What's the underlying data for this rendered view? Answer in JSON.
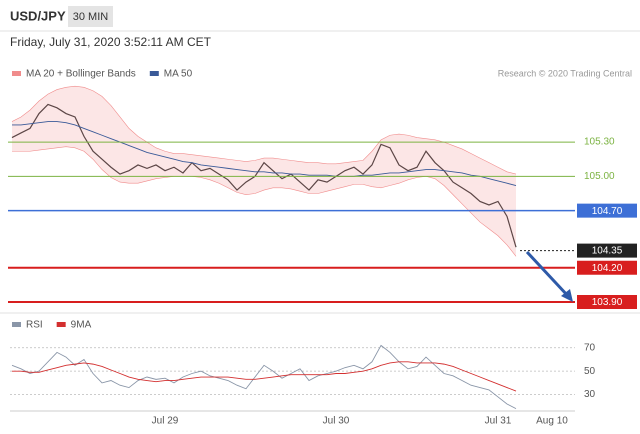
{
  "header": {
    "symbol": "USD/JPY",
    "interval": "30 MIN",
    "timestamp": "Friday, July 31, 2020 3:52:11 AM CET",
    "credit": "Research © 2020 Trading Central"
  },
  "chart_data": [
    {
      "type": "line",
      "ylim": [
        103.83,
        105.8
      ],
      "series": [
        {
          "color": "#333333",
          "values": [
            105.34,
            105.38,
            105.42,
            105.55,
            105.63,
            105.6,
            105.55,
            105.52,
            105.35,
            105.22,
            105.15,
            105.08,
            105.02,
            105.05,
            105.1,
            105.07,
            105.1,
            105.05,
            105.08,
            105.03,
            105.12,
            105.05,
            105.07,
            105.02,
            104.97,
            104.88,
            104.95,
            105.0,
            105.12,
            105.05,
            104.98,
            105.02,
            104.95,
            104.88,
            104.97,
            104.95,
            105.0,
            105.05,
            105.08,
            105.02,
            105.1,
            105.28,
            105.25,
            105.1,
            105.05,
            105.08,
            105.22,
            105.12,
            105.05,
            104.95,
            104.9,
            104.85,
            104.78,
            104.75,
            104.78,
            104.65,
            104.38,
            null,
            null,
            null,
            null,
            null
          ]
        },
        {
          "name": "MA 20 + Bollinger Bands",
          "color": "#f08c8c",
          "upper": [
            105.48,
            105.52,
            105.58,
            105.66,
            105.72,
            105.76,
            105.78,
            105.79,
            105.78,
            105.75,
            105.7,
            105.62,
            105.52,
            105.42,
            105.35,
            105.3,
            105.25,
            105.22,
            105.2,
            105.2,
            105.19,
            105.18,
            105.17,
            105.16,
            105.15,
            105.14,
            105.13,
            105.14,
            105.16,
            105.16,
            105.15,
            105.14,
            105.13,
            105.12,
            105.12,
            105.11,
            105.11,
            105.12,
            105.13,
            105.14,
            105.22,
            105.32,
            105.36,
            105.37,
            105.36,
            105.34,
            105.33,
            105.32,
            105.3,
            105.27,
            105.24,
            105.2,
            105.16,
            105.12,
            105.08,
            105.04,
            105.02,
            null,
            null,
            null,
            null,
            null
          ],
          "lower": [
            105.22,
            105.22,
            105.22,
            105.23,
            105.24,
            105.25,
            105.26,
            105.25,
            105.22,
            105.15,
            105.06,
            104.99,
            104.95,
            104.94,
            104.94,
            104.96,
            104.98,
            104.99,
            105.0,
            105.0,
            105.0,
            104.99,
            104.97,
            104.94,
            104.9,
            104.86,
            104.84,
            104.85,
            104.88,
            104.9,
            104.9,
            104.89,
            104.87,
            104.85,
            104.85,
            104.87,
            104.89,
            104.91,
            104.93,
            104.93,
            104.91,
            104.9,
            104.92,
            104.94,
            104.97,
            104.99,
            105.0,
            104.98,
            104.92,
            104.84,
            104.76,
            104.68,
            104.6,
            104.54,
            104.48,
            104.4,
            104.3,
            null,
            null,
            null,
            null,
            null
          ]
        },
        {
          "name": "MA 50",
          "color": "#3a5a98",
          "values": [
            105.45,
            105.45,
            105.46,
            105.47,
            105.48,
            105.48,
            105.47,
            105.45,
            105.42,
            105.39,
            105.36,
            105.33,
            105.3,
            105.27,
            105.24,
            105.21,
            105.19,
            105.17,
            105.15,
            105.13,
            105.12,
            105.1,
            105.09,
            105.08,
            105.07,
            105.06,
            105.05,
            105.04,
            105.04,
            105.03,
            105.03,
            105.02,
            105.02,
            105.01,
            105.01,
            105.01,
            105.0,
            105.0,
            105.0,
            105.01,
            105.01,
            105.02,
            105.03,
            105.03,
            105.04,
            105.05,
            105.06,
            105.06,
            105.05,
            105.04,
            105.03,
            105.01,
            105.0,
            104.98,
            104.96,
            104.94,
            104.92,
            null,
            null,
            null,
            null,
            null
          ]
        }
      ],
      "levels": [
        {
          "value": 105.3,
          "label": "105.30",
          "color": "#7cb342",
          "width": 1,
          "box": false
        },
        {
          "value": 105.0,
          "label": "105.00",
          "color": "#7cb342",
          "width": 1,
          "box": false
        },
        {
          "value": 104.7,
          "label": "104.70",
          "color": "#3d6fd6",
          "width": 1.5,
          "box": true
        },
        {
          "value": 104.35,
          "label": "104.35",
          "color": "#222222",
          "width": 1,
          "box": true,
          "dashed": true
        },
        {
          "value": 104.2,
          "label": "104.20",
          "color": "#d81e1e",
          "width": 2,
          "box": true
        },
        {
          "value": 103.9,
          "label": "103.90",
          "color": "#d81e1e",
          "width": 2,
          "box": true
        }
      ]
    },
    {
      "type": "line",
      "ylim": [
        16,
        80
      ],
      "yticks": [
        70,
        50,
        30
      ],
      "categories": [
        null,
        null,
        null,
        null,
        null,
        null,
        null,
        null,
        null,
        null,
        null,
        null,
        null,
        null,
        null,
        null,
        null,
        "Jul 29",
        null,
        null,
        null,
        null,
        null,
        null,
        null,
        null,
        null,
        null,
        null,
        null,
        null,
        null,
        null,
        null,
        null,
        null,
        "Jul 30",
        null,
        null,
        null,
        null,
        null,
        null,
        null,
        null,
        null,
        null,
        null,
        null,
        null,
        null,
        null,
        null,
        null,
        "Jul 31",
        null,
        null,
        null,
        null,
        null,
        "Aug 10",
        null
      ],
      "series": [
        {
          "name": "RSI",
          "color": "#8a96a8",
          "values": [
            55,
            52,
            48,
            50,
            58,
            66,
            62,
            55,
            60,
            48,
            40,
            42,
            38,
            36,
            42,
            45,
            43,
            44,
            40,
            45,
            48,
            50,
            46,
            44,
            42,
            38,
            35,
            45,
            55,
            50,
            44,
            48,
            52,
            42,
            46,
            48,
            50,
            53,
            55,
            52,
            58,
            72,
            66,
            58,
            52,
            54,
            62,
            55,
            48,
            46,
            42,
            38,
            36,
            34,
            28,
            22,
            18,
            null,
            null,
            null,
            null,
            null
          ]
        },
        {
          "name": "9MA",
          "color": "#d32f2f",
          "values": [
            50,
            50,
            49,
            49,
            51,
            53,
            55,
            56,
            57,
            56,
            54,
            51,
            48,
            45,
            43,
            42,
            41,
            42,
            42,
            43,
            44,
            45,
            45,
            45,
            45,
            44,
            43,
            43,
            44,
            45,
            46,
            47,
            47,
            47,
            47,
            47,
            48,
            48,
            49,
            50,
            52,
            55,
            57,
            58,
            58,
            57,
            57,
            57,
            56,
            54,
            51,
            48,
            45,
            42,
            39,
            36,
            33,
            null,
            null,
            null,
            null,
            null
          ]
        }
      ]
    }
  ]
}
